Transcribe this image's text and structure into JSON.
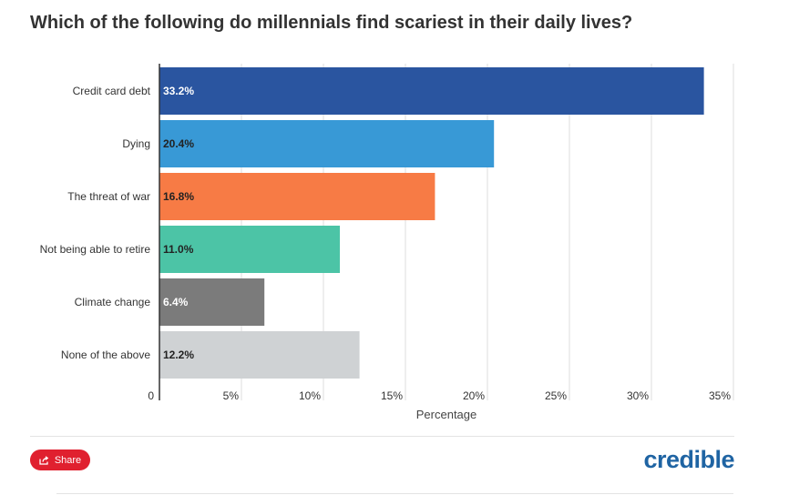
{
  "colors": {
    "grid": "#dcdcdc",
    "axis": "#333333",
    "share_button": "#e0202f",
    "logo": "#1f64a3"
  },
  "header": {
    "title": "Which of the following do millennials find scariest in their daily lives?"
  },
  "footer": {
    "share_label": "Share",
    "share_icon": "share-icon",
    "logo_text": "credible"
  },
  "chart_data": {
    "type": "bar",
    "orientation": "horizontal",
    "title": "Which of the following do millennials find scariest in their daily lives?",
    "xlabel": "Percentage",
    "ylabel": "",
    "xlim": [
      0,
      35
    ],
    "x_ticks": [
      0,
      5,
      10,
      15,
      20,
      25,
      30,
      35
    ],
    "x_tick_labels": [
      "0",
      "5%",
      "10%",
      "15%",
      "20%",
      "25%",
      "30%",
      "35%"
    ],
    "grid": true,
    "legend": "none",
    "categories": [
      "Credit card debt",
      "Dying",
      "The threat of war",
      "Not being able to retire",
      "Climate change",
      "None of the above"
    ],
    "values": [
      33.2,
      20.4,
      16.8,
      11.0,
      6.4,
      12.2
    ],
    "value_labels": [
      "33.2%",
      "20.4%",
      "16.8%",
      "11.0%",
      "6.4%",
      "12.2%"
    ],
    "bar_colors": [
      "#2a55a0",
      "#3899d6",
      "#f77b45",
      "#4cc4a6",
      "#7b7b7b",
      "#cfd2d4"
    ],
    "label_colors": [
      "#ffffff",
      "#222222",
      "#222222",
      "#222222",
      "#ffffff",
      "#222222"
    ]
  }
}
